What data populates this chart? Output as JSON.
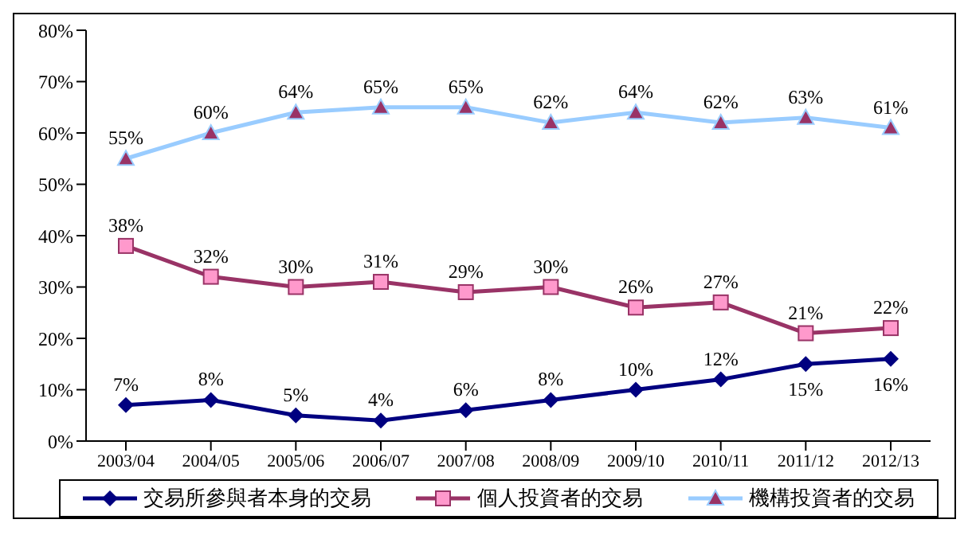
{
  "chart_data": {
    "type": "line",
    "categories": [
      "2003/04",
      "2004/05",
      "2005/06",
      "2006/07",
      "2007/08",
      "2008/09",
      "2009/10",
      "2010/11",
      "2011/12",
      "2012/13"
    ],
    "series": [
      {
        "name": "交易所參與者本身的交易",
        "color": "#000080",
        "marker": "diamond",
        "values": [
          7,
          8,
          5,
          4,
          6,
          8,
          10,
          12,
          15,
          16
        ],
        "value_labels": [
          "7%",
          "8%",
          "5%",
          "4%",
          "6%",
          "8%",
          "10%",
          "12%",
          "15%",
          "16%"
        ]
      },
      {
        "name": "個人投資者的交易",
        "color": "#993366",
        "marker": "square",
        "values": [
          38,
          32,
          30,
          31,
          29,
          30,
          26,
          27,
          21,
          22
        ],
        "value_labels": [
          "38%",
          "32%",
          "30%",
          "31%",
          "29%",
          "30%",
          "26%",
          "27%",
          "21%",
          "22%"
        ]
      },
      {
        "name": "機構投資者的交易",
        "color": "#99ccff",
        "marker": "triangle",
        "values": [
          55,
          60,
          64,
          65,
          65,
          62,
          64,
          62,
          63,
          61
        ],
        "value_labels": [
          "55%",
          "60%",
          "64%",
          "65%",
          "65%",
          "62%",
          "64%",
          "62%",
          "63%",
          "61%"
        ]
      }
    ],
    "ylim": [
      0,
      80
    ],
    "yticks": [
      {
        "value": 0,
        "label": "0%"
      },
      {
        "value": 10,
        "label": "10%"
      },
      {
        "value": 20,
        "label": "20%"
      },
      {
        "value": 30,
        "label": "30%"
      },
      {
        "value": 40,
        "label": "40%"
      },
      {
        "value": 50,
        "label": "50%"
      },
      {
        "value": 60,
        "label": "60%"
      },
      {
        "value": 70,
        "label": "70%"
      },
      {
        "value": 80,
        "label": "80%"
      }
    ],
    "grid": false,
    "legend": "bottom",
    "line_style": "solid"
  }
}
